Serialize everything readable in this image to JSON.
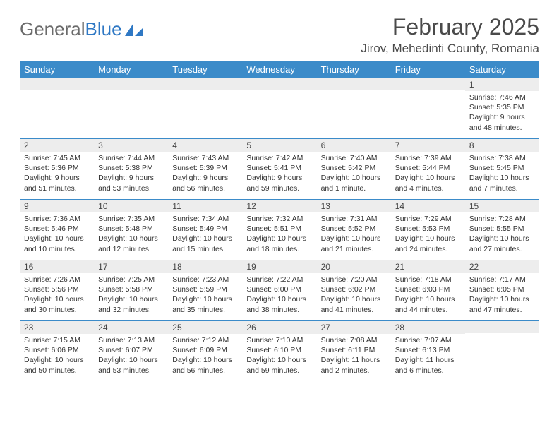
{
  "logo": {
    "text1": "General",
    "text2": "Blue"
  },
  "title": "February 2025",
  "location": "Jirov, Mehedinti County, Romania",
  "colors": {
    "header_bg": "#3b8bc9",
    "header_text": "#ffffff",
    "daynum_bg": "#ededed",
    "border": "#3b8bc9",
    "logo_gray": "#6b6b6b",
    "logo_blue": "#2f78c4"
  },
  "weekdays": [
    "Sunday",
    "Monday",
    "Tuesday",
    "Wednesday",
    "Thursday",
    "Friday",
    "Saturday"
  ],
  "weeks": [
    [
      {
        "day": "",
        "lines": []
      },
      {
        "day": "",
        "lines": []
      },
      {
        "day": "",
        "lines": []
      },
      {
        "day": "",
        "lines": []
      },
      {
        "day": "",
        "lines": []
      },
      {
        "day": "",
        "lines": []
      },
      {
        "day": "1",
        "lines": [
          "Sunrise: 7:46 AM",
          "Sunset: 5:35 PM",
          "Daylight: 9 hours and 48 minutes."
        ]
      }
    ],
    [
      {
        "day": "2",
        "lines": [
          "Sunrise: 7:45 AM",
          "Sunset: 5:36 PM",
          "Daylight: 9 hours and 51 minutes."
        ]
      },
      {
        "day": "3",
        "lines": [
          "Sunrise: 7:44 AM",
          "Sunset: 5:38 PM",
          "Daylight: 9 hours and 53 minutes."
        ]
      },
      {
        "day": "4",
        "lines": [
          "Sunrise: 7:43 AM",
          "Sunset: 5:39 PM",
          "Daylight: 9 hours and 56 minutes."
        ]
      },
      {
        "day": "5",
        "lines": [
          "Sunrise: 7:42 AM",
          "Sunset: 5:41 PM",
          "Daylight: 9 hours and 59 minutes."
        ]
      },
      {
        "day": "6",
        "lines": [
          "Sunrise: 7:40 AM",
          "Sunset: 5:42 PM",
          "Daylight: 10 hours and 1 minute."
        ]
      },
      {
        "day": "7",
        "lines": [
          "Sunrise: 7:39 AM",
          "Sunset: 5:44 PM",
          "Daylight: 10 hours and 4 minutes."
        ]
      },
      {
        "day": "8",
        "lines": [
          "Sunrise: 7:38 AM",
          "Sunset: 5:45 PM",
          "Daylight: 10 hours and 7 minutes."
        ]
      }
    ],
    [
      {
        "day": "9",
        "lines": [
          "Sunrise: 7:36 AM",
          "Sunset: 5:46 PM",
          "Daylight: 10 hours and 10 minutes."
        ]
      },
      {
        "day": "10",
        "lines": [
          "Sunrise: 7:35 AM",
          "Sunset: 5:48 PM",
          "Daylight: 10 hours and 12 minutes."
        ]
      },
      {
        "day": "11",
        "lines": [
          "Sunrise: 7:34 AM",
          "Sunset: 5:49 PM",
          "Daylight: 10 hours and 15 minutes."
        ]
      },
      {
        "day": "12",
        "lines": [
          "Sunrise: 7:32 AM",
          "Sunset: 5:51 PM",
          "Daylight: 10 hours and 18 minutes."
        ]
      },
      {
        "day": "13",
        "lines": [
          "Sunrise: 7:31 AM",
          "Sunset: 5:52 PM",
          "Daylight: 10 hours and 21 minutes."
        ]
      },
      {
        "day": "14",
        "lines": [
          "Sunrise: 7:29 AM",
          "Sunset: 5:53 PM",
          "Daylight: 10 hours and 24 minutes."
        ]
      },
      {
        "day": "15",
        "lines": [
          "Sunrise: 7:28 AM",
          "Sunset: 5:55 PM",
          "Daylight: 10 hours and 27 minutes."
        ]
      }
    ],
    [
      {
        "day": "16",
        "lines": [
          "Sunrise: 7:26 AM",
          "Sunset: 5:56 PM",
          "Daylight: 10 hours and 30 minutes."
        ]
      },
      {
        "day": "17",
        "lines": [
          "Sunrise: 7:25 AM",
          "Sunset: 5:58 PM",
          "Daylight: 10 hours and 32 minutes."
        ]
      },
      {
        "day": "18",
        "lines": [
          "Sunrise: 7:23 AM",
          "Sunset: 5:59 PM",
          "Daylight: 10 hours and 35 minutes."
        ]
      },
      {
        "day": "19",
        "lines": [
          "Sunrise: 7:22 AM",
          "Sunset: 6:00 PM",
          "Daylight: 10 hours and 38 minutes."
        ]
      },
      {
        "day": "20",
        "lines": [
          "Sunrise: 7:20 AM",
          "Sunset: 6:02 PM",
          "Daylight: 10 hours and 41 minutes."
        ]
      },
      {
        "day": "21",
        "lines": [
          "Sunrise: 7:18 AM",
          "Sunset: 6:03 PM",
          "Daylight: 10 hours and 44 minutes."
        ]
      },
      {
        "day": "22",
        "lines": [
          "Sunrise: 7:17 AM",
          "Sunset: 6:05 PM",
          "Daylight: 10 hours and 47 minutes."
        ]
      }
    ],
    [
      {
        "day": "23",
        "lines": [
          "Sunrise: 7:15 AM",
          "Sunset: 6:06 PM",
          "Daylight: 10 hours and 50 minutes."
        ]
      },
      {
        "day": "24",
        "lines": [
          "Sunrise: 7:13 AM",
          "Sunset: 6:07 PM",
          "Daylight: 10 hours and 53 minutes."
        ]
      },
      {
        "day": "25",
        "lines": [
          "Sunrise: 7:12 AM",
          "Sunset: 6:09 PM",
          "Daylight: 10 hours and 56 minutes."
        ]
      },
      {
        "day": "26",
        "lines": [
          "Sunrise: 7:10 AM",
          "Sunset: 6:10 PM",
          "Daylight: 10 hours and 59 minutes."
        ]
      },
      {
        "day": "27",
        "lines": [
          "Sunrise: 7:08 AM",
          "Sunset: 6:11 PM",
          "Daylight: 11 hours and 2 minutes."
        ]
      },
      {
        "day": "28",
        "lines": [
          "Sunrise: 7:07 AM",
          "Sunset: 6:13 PM",
          "Daylight: 11 hours and 6 minutes."
        ]
      },
      {
        "day": "",
        "lines": []
      }
    ]
  ]
}
